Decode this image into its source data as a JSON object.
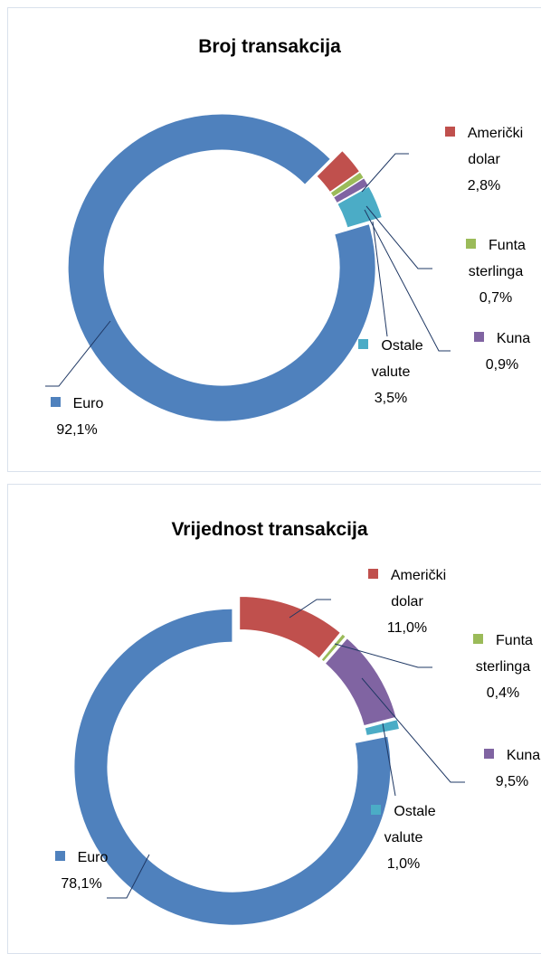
{
  "chart_data": [
    {
      "type": "donut",
      "title": "Broj transakcija",
      "categories": [
        "Američki dolar",
        "Funta sterlinga",
        "Kuna",
        "Ostale valute",
        "Euro"
      ],
      "values": [
        2.8,
        0.7,
        0.9,
        3.5,
        92.1
      ],
      "value_labels": [
        "2,8%",
        "0,7%",
        "0,9%",
        "3,5%",
        "92,1%"
      ],
      "colors": [
        "#c0504d",
        "#9bbb59",
        "#8064a2",
        "#4bacc6",
        "#4f81bd"
      ]
    },
    {
      "type": "donut",
      "title": "Vrijednost transakcija",
      "categories": [
        "Američki dolar",
        "Funta sterlinga",
        "Kuna",
        "Ostale valute",
        "Euro"
      ],
      "values": [
        11.0,
        0.4,
        9.5,
        1.0,
        78.1
      ],
      "value_labels": [
        "11,0%",
        "0,4%",
        "9,5%",
        "1,0%",
        "78,1%"
      ],
      "colors": [
        "#c0504d",
        "#9bbb59",
        "#8064a2",
        "#4bacc6",
        "#4f81bd"
      ]
    }
  ]
}
